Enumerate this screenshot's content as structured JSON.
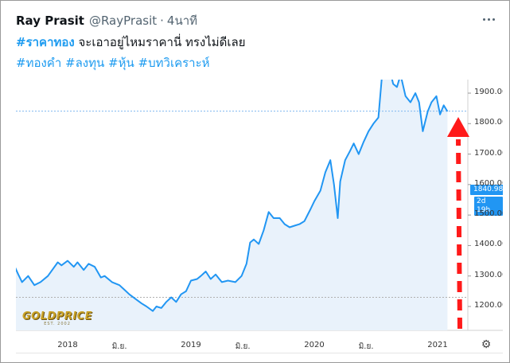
{
  "tweet": {
    "author_name": "Ray Prasit",
    "handle": "@RayPrasit",
    "separator": "·",
    "time": "4นาที",
    "more_icon": "more-dots-icon",
    "text_hashtag": "#ราคาทอง",
    "text_body": " จะเอาอยู่ไหมราคานี่ ทรงไม่ดีเลย",
    "hashtags": [
      "#ทองคำ",
      "#ลงทุน",
      "#หุ้น",
      "#บทวิเคราะห์"
    ]
  },
  "chart": {
    "logo_text": "GOLDPRICE",
    "logo_sub": "EST. 2002",
    "price_label": "1840.98",
    "time_label": "2d 19h",
    "settings_icon": "gear-icon",
    "arrow_icon": "red-dashed-up-arrow",
    "colors": {
      "line": "#2196f3",
      "area": "#e9f2fb",
      "arrow": "#ff1a1a",
      "badge": "#2196f3"
    }
  },
  "chart_data": {
    "type": "line",
    "y_ticks": [
      "1900.00",
      "1800.00",
      "1700.00",
      "1600.00",
      "1500.00",
      "1400.00",
      "1300.00",
      "1200.00"
    ],
    "ylim": [
      1100,
      1960
    ],
    "x_ticks": [
      "2018",
      "มิ.ย.",
      "2019",
      "มิ.ย.",
      "2020",
      "มิ.ย.",
      "2021"
    ],
    "reference_lines": [
      1840.98,
      1230
    ],
    "series": [
      {
        "x": [
          2017.42,
          2017.46,
          2017.5,
          2017.55,
          2017.6,
          2017.63,
          2017.68,
          2017.73,
          2017.78,
          2017.84,
          2017.92,
          2017.95,
          2018.0,
          2018.05,
          2018.08,
          2018.13,
          2018.17,
          2018.22,
          2018.27,
          2018.3,
          2018.36,
          2018.42,
          2018.46,
          2018.5,
          2018.55,
          2018.6,
          2018.64,
          2018.69,
          2018.72,
          2018.76,
          2018.8,
          2018.84,
          2018.88,
          2018.92,
          2018.96,
          2019.0,
          2019.05,
          2019.08,
          2019.12,
          2019.16,
          2019.2,
          2019.25,
          2019.3,
          2019.36,
          2019.41,
          2019.45,
          2019.48,
          2019.51,
          2019.55,
          2019.59,
          2019.63,
          2019.67,
          2019.72,
          2019.76,
          2019.8,
          2019.84,
          2019.88,
          2019.92,
          2019.97,
          2020.0,
          2020.05,
          2020.09,
          2020.13,
          2020.16,
          2020.19,
          2020.21,
          2020.25,
          2020.29,
          2020.32,
          2020.36,
          2020.4,
          2020.44,
          2020.48,
          2020.52,
          2020.55,
          2020.58,
          2020.61,
          2020.64,
          2020.67,
          2020.7,
          2020.74,
          2020.78,
          2020.82,
          2020.85,
          2020.88,
          2020.92,
          2020.95,
          2020.99,
          2021.02,
          2021.05,
          2021.08
        ],
        "y": [
          1265,
          1295,
          1300,
          1350,
          1305,
          1280,
          1300,
          1270,
          1280,
          1300,
          1345,
          1335,
          1350,
          1330,
          1345,
          1320,
          1340,
          1330,
          1295,
          1300,
          1280,
          1270,
          1255,
          1240,
          1225,
          1210,
          1200,
          1185,
          1200,
          1195,
          1215,
          1230,
          1215,
          1240,
          1250,
          1285,
          1290,
          1300,
          1315,
          1290,
          1305,
          1280,
          1285,
          1280,
          1300,
          1340,
          1410,
          1420,
          1405,
          1450,
          1510,
          1490,
          1490,
          1470,
          1460,
          1465,
          1470,
          1480,
          1520,
          1545,
          1580,
          1640,
          1680,
          1600,
          1490,
          1610,
          1680,
          1710,
          1735,
          1700,
          1740,
          1775,
          1800,
          1820,
          1960,
          2050,
          1980,
          1930,
          1920,
          1960,
          1890,
          1870,
          1900,
          1870,
          1775,
          1840,
          1870,
          1890,
          1830,
          1860,
          1840
        ]
      }
    ]
  }
}
